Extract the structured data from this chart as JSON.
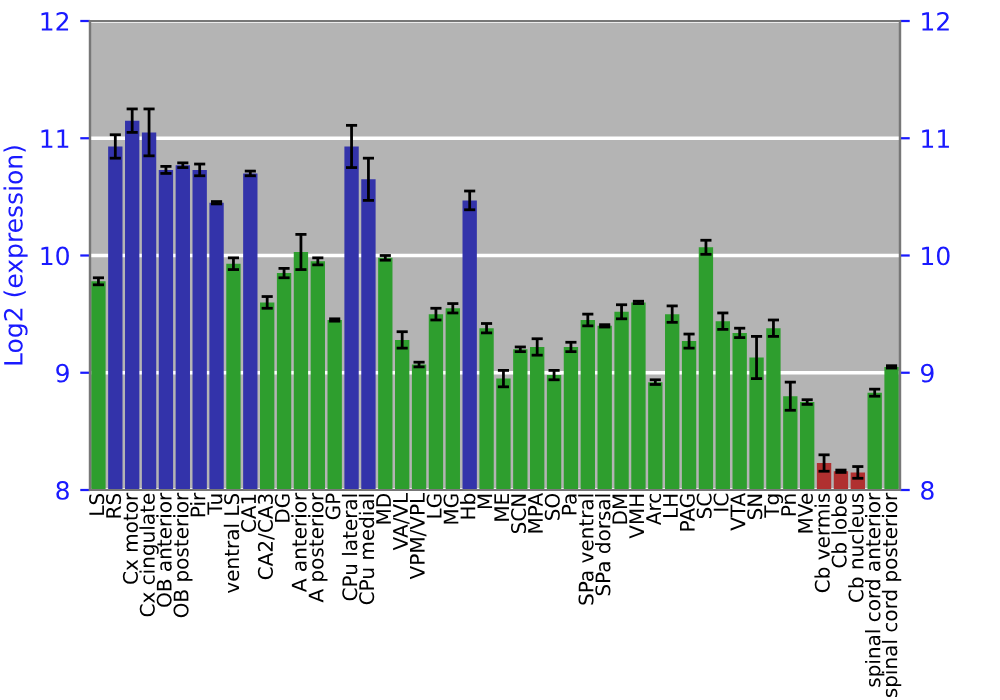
{
  "chart_data": {
    "type": "bar",
    "ylabel": "Log2 (expression)",
    "categories": [
      "LS",
      "RS",
      "Cx motor",
      "Cx cingulate",
      "OB anterior",
      "OB posterior",
      "Pir",
      "Tu",
      "ventral LS",
      "CA1",
      "CA2/CA3",
      "DG",
      "A anterior",
      "A posterior",
      "GP",
      "CPu lateral",
      "CPu medial",
      "MD",
      "VA/VL",
      "VPM/VPL",
      "LG",
      "MG",
      "Hb",
      "M",
      "ME",
      "SCN",
      "MPA",
      "SO",
      "Pa",
      "SPa ventral",
      "SPa dorsal",
      "DM",
      "VMH",
      "Arc",
      "LH",
      "PAG",
      "SC",
      "IC",
      "VTA",
      "SN",
      "Tg",
      "Pn",
      "MVe",
      "Cb vermis",
      "Cb lobe",
      "Cb nucleus",
      "spinal cord anterior",
      "spinal cord posterior"
    ],
    "values": [
      9.78,
      10.93,
      11.15,
      11.05,
      10.73,
      10.77,
      10.73,
      10.45,
      9.93,
      10.7,
      9.6,
      9.85,
      10.03,
      9.95,
      9.45,
      10.93,
      10.65,
      9.98,
      9.28,
      9.07,
      9.5,
      9.55,
      10.47,
      9.38,
      8.95,
      9.2,
      9.22,
      8.98,
      9.22,
      9.45,
      9.4,
      9.52,
      9.6,
      8.92,
      9.5,
      9.27,
      10.07,
      9.44,
      9.34,
      9.13,
      9.38,
      8.8,
      8.75,
      8.23,
      8.16,
      8.15,
      8.83,
      9.05
    ],
    "errors": [
      0.03,
      0.1,
      0.1,
      0.2,
      0.03,
      0.02,
      0.05,
      0.01,
      0.05,
      0.02,
      0.05,
      0.04,
      0.15,
      0.03,
      0.01,
      0.18,
      0.18,
      0.02,
      0.07,
      0.02,
      0.05,
      0.04,
      0.08,
      0.04,
      0.07,
      0.02,
      0.07,
      0.04,
      0.04,
      0.05,
      0.01,
      0.06,
      0.01,
      0.02,
      0.07,
      0.06,
      0.06,
      0.07,
      0.04,
      0.18,
      0.07,
      0.12,
      0.02,
      0.07,
      0.01,
      0.05,
      0.03,
      0.01
    ],
    "colors": [
      "#2e9e2e",
      "#3333aa",
      "#3333aa",
      "#3333aa",
      "#3333aa",
      "#3333aa",
      "#3333aa",
      "#3333aa",
      "#2e9e2e",
      "#3333aa",
      "#2e9e2e",
      "#2e9e2e",
      "#2e9e2e",
      "#2e9e2e",
      "#2e9e2e",
      "#3333aa",
      "#3333aa",
      "#2e9e2e",
      "#2e9e2e",
      "#2e9e2e",
      "#2e9e2e",
      "#2e9e2e",
      "#3333aa",
      "#2e9e2e",
      "#2e9e2e",
      "#2e9e2e",
      "#2e9e2e",
      "#2e9e2e",
      "#2e9e2e",
      "#2e9e2e",
      "#2e9e2e",
      "#2e9e2e",
      "#2e9e2e",
      "#2e9e2e",
      "#2e9e2e",
      "#2e9e2e",
      "#2e9e2e",
      "#2e9e2e",
      "#2e9e2e",
      "#2e9e2e",
      "#2e9e2e",
      "#2e9e2e",
      "#2e9e2e",
      "#b03030",
      "#b03030",
      "#b03030",
      "#2e9e2e",
      "#2e9e2e"
    ],
    "ylim": [
      8,
      12
    ],
    "yticks": [
      8,
      9,
      10,
      11,
      12
    ],
    "y2lim": [
      8,
      12
    ],
    "y2ticks": [
      8,
      9,
      10,
      11,
      12
    ],
    "grid": "y"
  }
}
